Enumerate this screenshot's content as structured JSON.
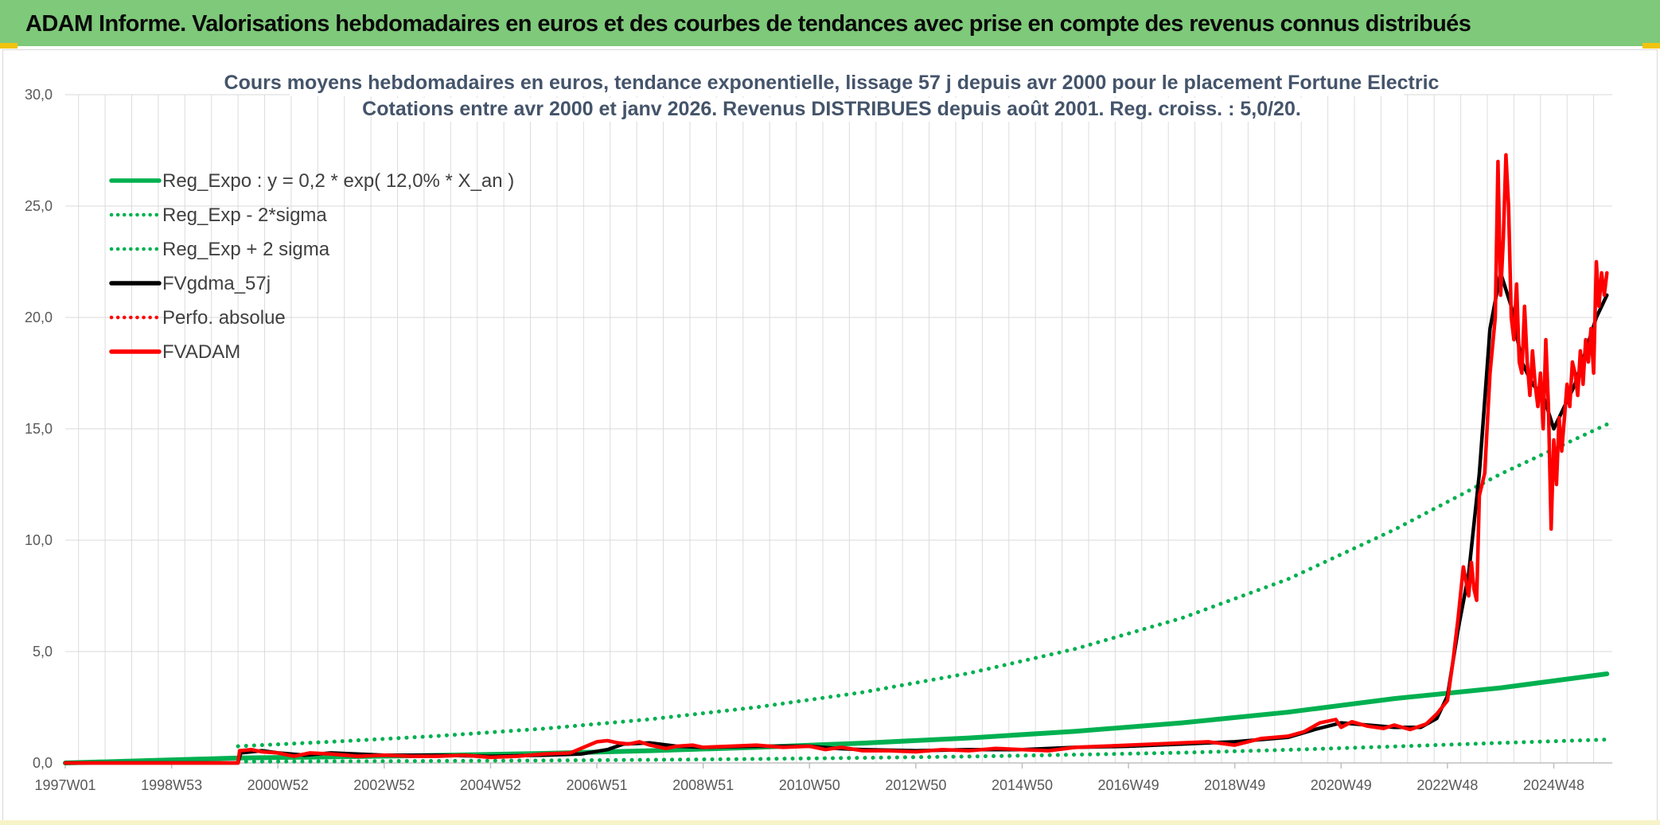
{
  "banner": {
    "title": "ADAM Informe. Valorisations hebdomadaires en euros et des courbes de tendances avec prise en compte des revenus connus distribués"
  },
  "colors": {
    "green": "#00b050",
    "black": "#000000",
    "red": "#ff0000",
    "banner": "#7ec97a",
    "title_text": "#44546a"
  },
  "chart_data": {
    "type": "line",
    "title": "Cours moyens hebdomadaires en euros, tendance exponentielle, lissage 57 j depuis avr 2000 pour le placement Fortune Electric",
    "subtitle": "Cotations entre avr 2000 et janv 2026. Revenus DISTRIBUES depuis août 2001. Reg. croiss. : 5,0/20.",
    "xlabel": "",
    "ylabel": "",
    "x_range": [
      1997.0,
      2026.1
    ],
    "ylim": [
      0,
      30
    ],
    "y_ticks": [
      "0,0",
      "5,0",
      "10,0",
      "15,0",
      "20,0",
      "25,0",
      "30,0"
    ],
    "x_ticks": [
      {
        "label": "1997W01",
        "x": 1997.0
      },
      {
        "label": "1998W53",
        "x": 1999.0
      },
      {
        "label": "2000W52",
        "x": 2001.0
      },
      {
        "label": "2002W52",
        "x": 2003.0
      },
      {
        "label": "2004W52",
        "x": 2005.0
      },
      {
        "label": "2006W51",
        "x": 2007.0
      },
      {
        "label": "2008W51",
        "x": 2009.0
      },
      {
        "label": "2010W50",
        "x": 2011.0
      },
      {
        "label": "2012W50",
        "x": 2013.0
      },
      {
        "label": "2014W50",
        "x": 2015.0
      },
      {
        "label": "2016W49",
        "x": 2017.0
      },
      {
        "label": "2018W49",
        "x": 2019.0
      },
      {
        "label": "2020W49",
        "x": 2021.0
      },
      {
        "label": "2022W48",
        "x": 2023.0
      },
      {
        "label": "2024W48",
        "x": 2025.0
      }
    ],
    "grid": true,
    "legend_position": "top-left",
    "series": [
      {
        "name": "Reg_Expo : y = 0,2 * exp( 12,0% *  X_an )",
        "style": "solid",
        "color": "#00b050",
        "x": [
          1997.0,
          2000.25,
          2002,
          2004,
          2006,
          2008,
          2010,
          2012,
          2014,
          2016,
          2018,
          2020,
          2022,
          2024,
          2026.0
        ],
        "values": [
          0,
          0.22,
          0.27,
          0.34,
          0.43,
          0.55,
          0.7,
          0.89,
          1.12,
          1.42,
          1.8,
          2.28,
          2.89,
          3.37,
          4.0
        ]
      },
      {
        "name": "Reg_Exp - 2*sigma",
        "style": "dotted",
        "color": "#00b050",
        "x": [
          2000.25,
          2002,
          2004,
          2006,
          2008,
          2010,
          2012,
          2014,
          2016,
          2018,
          2020,
          2022,
          2024,
          2026.0
        ],
        "values": [
          0.06,
          0.07,
          0.09,
          0.11,
          0.14,
          0.18,
          0.23,
          0.29,
          0.37,
          0.46,
          0.59,
          0.74,
          0.9,
          1.05
        ]
      },
      {
        "name": "Reg_Exp + 2 sigma",
        "style": "dotted",
        "color": "#00b050",
        "x": [
          2000.25,
          2002,
          2004,
          2006,
          2008,
          2010,
          2012,
          2014,
          2016,
          2018,
          2020,
          2022,
          2024,
          2026.0
        ],
        "values": [
          0.75,
          0.95,
          1.21,
          1.54,
          1.96,
          2.5,
          3.17,
          4.03,
          5.12,
          6.5,
          8.25,
          10.47,
          12.97,
          15.2
        ]
      },
      {
        "name": "FVgdma_57j",
        "style": "solid",
        "color": "#000000",
        "x": [
          1997.0,
          2000.25,
          2000.3,
          2000.7,
          2001.0,
          2001.5,
          2002.0,
          2003.0,
          2004.0,
          2005.0,
          2006.0,
          2006.7,
          2007.2,
          2007.5,
          2008.0,
          2008.5,
          2009.0,
          2010.0,
          2011.0,
          2011.5,
          2012.0,
          2013.0,
          2014.0,
          2015.0,
          2016.0,
          2017.0,
          2018.0,
          2019.0,
          2020.0,
          2020.5,
          2021.0,
          2021.5,
          2022.0,
          2022.5,
          2022.8,
          2023.0,
          2023.2,
          2023.4,
          2023.6,
          2023.8,
          2024.0,
          2024.2,
          2024.4,
          2024.6,
          2024.8,
          2025.0,
          2025.2,
          2025.4,
          2025.6,
          2025.8,
          2026.0
        ],
        "values": [
          0,
          0,
          0.45,
          0.55,
          0.45,
          0.35,
          0.45,
          0.35,
          0.35,
          0.3,
          0.35,
          0.4,
          0.6,
          0.85,
          0.9,
          0.75,
          0.7,
          0.75,
          0.75,
          0.65,
          0.6,
          0.55,
          0.6,
          0.6,
          0.7,
          0.75,
          0.85,
          0.95,
          1.15,
          1.5,
          1.8,
          1.7,
          1.6,
          1.6,
          2.0,
          3.0,
          6.0,
          8.5,
          13.0,
          19.5,
          22.0,
          20.5,
          18.0,
          17.0,
          16.5,
          15.0,
          16.0,
          17.0,
          18.5,
          20.0,
          21.0
        ]
      },
      {
        "name": "Perfo. absolue",
        "style": "dotted",
        "color": "#ff0000",
        "x": [],
        "values": []
      },
      {
        "name": "FVADAM",
        "style": "solid",
        "color": "#ff0000",
        "x": [
          1997.0,
          2000.25,
          2000.28,
          2000.5,
          2000.7,
          2001.0,
          2001.3,
          2001.6,
          2002.0,
          2002.5,
          2003.0,
          2003.5,
          2004.0,
          2004.5,
          2005.0,
          2005.5,
          2006.0,
          2006.5,
          2006.8,
          2007.0,
          2007.2,
          2007.4,
          2007.6,
          2007.8,
          2008.0,
          2008.3,
          2008.5,
          2008.8,
          2009.0,
          2009.5,
          2010.0,
          2010.5,
          2011.0,
          2011.3,
          2011.6,
          2012.0,
          2012.5,
          2013.0,
          2013.5,
          2014.0,
          2014.5,
          2015.0,
          2015.5,
          2016.0,
          2016.5,
          2017.0,
          2017.5,
          2018.0,
          2018.5,
          2019.0,
          2019.5,
          2020.0,
          2020.3,
          2020.6,
          2020.9,
          2021.0,
          2021.2,
          2021.5,
          2021.8,
          2022.0,
          2022.3,
          2022.6,
          2022.8,
          2023.0,
          2023.1,
          2023.2,
          2023.3,
          2023.4,
          2023.45,
          2023.5,
          2023.55,
          2023.6,
          2023.7,
          2023.8,
          2023.9,
          2023.95,
          2024.0,
          2024.05,
          2024.1,
          2024.15,
          2024.2,
          2024.25,
          2024.3,
          2024.35,
          2024.4,
          2024.45,
          2024.5,
          2024.55,
          2024.6,
          2024.65,
          2024.7,
          2024.75,
          2024.8,
          2024.85,
          2024.9,
          2024.95,
          2025.0,
          2025.05,
          2025.1,
          2025.15,
          2025.2,
          2025.25,
          2025.3,
          2025.35,
          2025.4,
          2025.45,
          2025.5,
          2025.55,
          2025.6,
          2025.65,
          2025.7,
          2025.75,
          2025.8,
          2025.85,
          2025.9,
          2025.95,
          2026.0
        ],
        "values": [
          0,
          0,
          0.55,
          0.6,
          0.5,
          0.45,
          0.3,
          0.45,
          0.4,
          0.3,
          0.35,
          0.3,
          0.3,
          0.35,
          0.25,
          0.3,
          0.4,
          0.45,
          0.75,
          0.95,
          1.0,
          0.9,
          0.85,
          0.95,
          0.8,
          0.65,
          0.75,
          0.8,
          0.7,
          0.75,
          0.8,
          0.7,
          0.75,
          0.6,
          0.7,
          0.55,
          0.55,
          0.5,
          0.6,
          0.55,
          0.65,
          0.6,
          0.55,
          0.7,
          0.75,
          0.8,
          0.85,
          0.9,
          0.95,
          0.8,
          1.1,
          1.2,
          1.4,
          1.8,
          1.95,
          1.6,
          1.85,
          1.65,
          1.55,
          1.7,
          1.5,
          1.75,
          2.2,
          2.8,
          4.5,
          6.5,
          8.8,
          7.5,
          9.0,
          7.8,
          7.3,
          12.0,
          13.0,
          17.5,
          20.0,
          27.0,
          21.0,
          23.5,
          27.3,
          25.0,
          20.0,
          19.0,
          21.5,
          18.0,
          17.5,
          20.5,
          18.0,
          16.5,
          18.5,
          17.0,
          16.0,
          17.5,
          15.0,
          19.0,
          16.0,
          10.5,
          14.5,
          12.5,
          15.5,
          14.0,
          15.5,
          17.0,
          16.0,
          18.0,
          17.5,
          16.5,
          18.5,
          17.0,
          19.0,
          18.0,
          19.5,
          17.5,
          22.5,
          20.5,
          22.0,
          21.0,
          22.0
        ]
      }
    ]
  }
}
